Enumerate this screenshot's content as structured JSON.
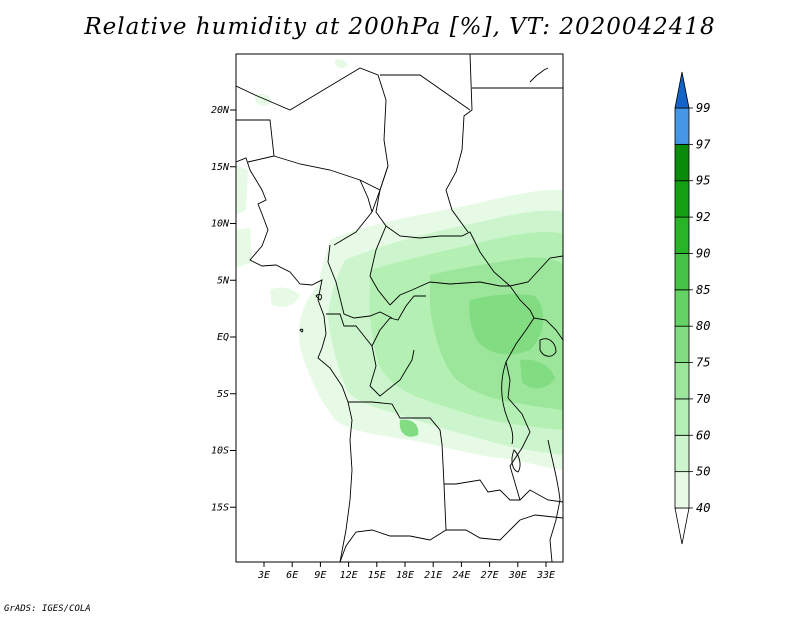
{
  "title": "Relative humidity at 200hPa [%], VT: 2020042418",
  "credit": "GrADS: IGES/COLA",
  "map": {
    "variable": "Relative humidity",
    "level": "200hPa",
    "units": "%",
    "valid_time": "2020042418",
    "lat_labels": [
      "20N",
      "15N",
      "10N",
      "5N",
      "EQ",
      "5S",
      "10S",
      "15S"
    ],
    "lat_values": [
      20,
      15,
      10,
      5,
      0,
      -5,
      -10,
      -15
    ],
    "lon_labels": [
      "3E",
      "6E",
      "9E",
      "12E",
      "15E",
      "18E",
      "21E",
      "24E",
      "27E",
      "30E",
      "33E"
    ],
    "lon_values": [
      3,
      6,
      9,
      12,
      15,
      18,
      21,
      24,
      27,
      30,
      33
    ]
  },
  "colorbar": {
    "labels": [
      "40",
      "50",
      "60",
      "70",
      "75",
      "80",
      "85",
      "90",
      "92",
      "95",
      "97",
      "99"
    ],
    "colors": [
      "#ffffff",
      "#e6fae6",
      "#cdf5cd",
      "#b4f0b4",
      "#9be69b",
      "#82dc82",
      "#64d264",
      "#46c346",
      "#28b428",
      "#14a014",
      "#0a8c0a",
      "#4696e6",
      "#2d7dd7",
      "#1464c8"
    ]
  }
}
